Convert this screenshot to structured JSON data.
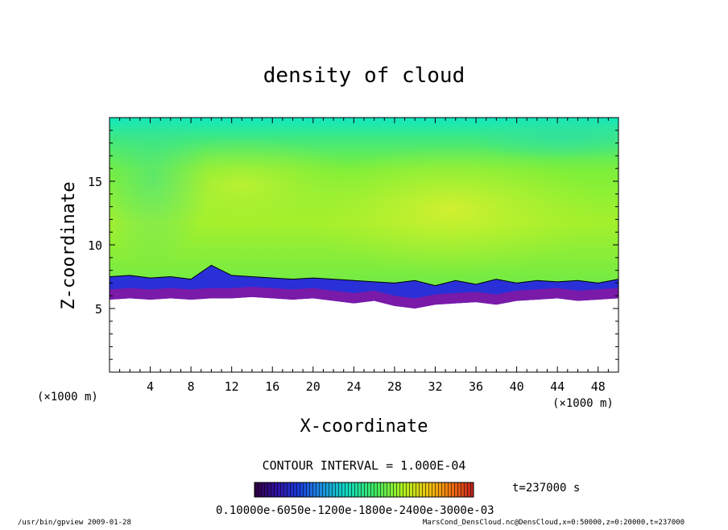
{
  "chart_data": {
    "type": "heatmap",
    "title": "density of cloud",
    "xlabel": "X-coordinate",
    "ylabel": "Z-coordinate",
    "x_unit": "(×1000 m)",
    "y_unit": "(×1000 m)",
    "xlim": [
      0,
      50
    ],
    "ylim": [
      0,
      20
    ],
    "x_ticks": [
      4,
      8,
      12,
      16,
      20,
      24,
      28,
      32,
      36,
      40,
      44,
      48
    ],
    "y_ticks": [
      5,
      10,
      15
    ],
    "contour_interval_label": "CONTOUR INTERVAL = 1.000E-04",
    "time_label": "t=237000 s",
    "colorbar_labels": "0.10000e-6050e-1200e-1800e-2400e-3000e-03",
    "cloud_base_z": [
      [
        0,
        5.7
      ],
      [
        2,
        5.8
      ],
      [
        4,
        5.7
      ],
      [
        6,
        5.8
      ],
      [
        8,
        5.7
      ],
      [
        10,
        5.8
      ],
      [
        12,
        5.8
      ],
      [
        14,
        5.9
      ],
      [
        16,
        5.8
      ],
      [
        18,
        5.7
      ],
      [
        20,
        5.8
      ],
      [
        22,
        5.6
      ],
      [
        24,
        5.4
      ],
      [
        26,
        5.6
      ],
      [
        28,
        5.2
      ],
      [
        30,
        5.0
      ],
      [
        32,
        5.3
      ],
      [
        34,
        5.4
      ],
      [
        36,
        5.5
      ],
      [
        38,
        5.3
      ],
      [
        40,
        5.6
      ],
      [
        42,
        5.7
      ],
      [
        44,
        5.8
      ],
      [
        46,
        5.6
      ],
      [
        48,
        5.7
      ],
      [
        50,
        5.8
      ]
    ],
    "contour_line_z": [
      [
        0,
        7.5
      ],
      [
        2,
        7.6
      ],
      [
        4,
        7.4
      ],
      [
        6,
        7.5
      ],
      [
        8,
        7.3
      ],
      [
        10,
        8.4
      ],
      [
        12,
        7.6
      ],
      [
        14,
        7.5
      ],
      [
        16,
        7.4
      ],
      [
        18,
        7.3
      ],
      [
        20,
        7.4
      ],
      [
        22,
        7.3
      ],
      [
        24,
        7.2
      ],
      [
        26,
        7.1
      ],
      [
        28,
        7.0
      ],
      [
        30,
        7.2
      ],
      [
        32,
        6.8
      ],
      [
        34,
        7.2
      ],
      [
        36,
        6.9
      ],
      [
        38,
        7.3
      ],
      [
        40,
        7.0
      ],
      [
        42,
        7.2
      ],
      [
        44,
        7.1
      ],
      [
        46,
        7.2
      ],
      [
        48,
        7.0
      ],
      [
        50,
        7.3
      ]
    ],
    "colormap": [
      "#1a0033",
      "#4a10a0",
      "#2030d0",
      "#1f8ae0",
      "#00e0c8",
      "#3ce860",
      "#9aee20",
      "#d8f020",
      "#f8c010",
      "#f06010",
      "#c01010"
    ]
  },
  "footer": {
    "left": "/usr/bin/gpview  2009-01-28",
    "right": "MarsCond_DensCloud.nc@DensCloud,x=0:50000,z=0:20000,t=237000"
  }
}
